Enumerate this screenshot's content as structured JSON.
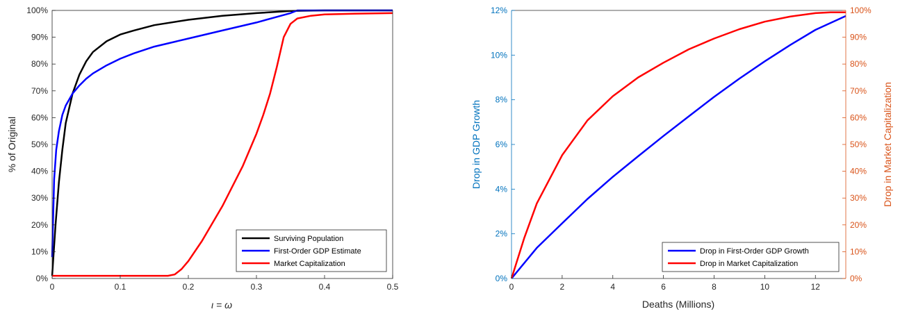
{
  "chart_data": [
    {
      "type": "line",
      "xlabel": "ι = ω",
      "ylabel": "% of Original",
      "xlim": [
        0,
        0.5
      ],
      "ylim": [
        0,
        1
      ],
      "x_ticks": [
        0,
        0.1,
        0.2,
        0.3,
        0.4,
        0.5
      ],
      "x_tick_labels": [
        "0",
        "0.1",
        "0.2",
        "0.3",
        "0.4",
        "0.5"
      ],
      "y_ticks": [
        0,
        0.1,
        0.2,
        0.3,
        0.4,
        0.5,
        0.6,
        0.7,
        0.8,
        0.9,
        1.0
      ],
      "y_tick_labels": [
        "0%",
        "10%",
        "20%",
        "30%",
        "40%",
        "50%",
        "60%",
        "70%",
        "80%",
        "90%",
        "100%"
      ],
      "legend_position": "bottom-right",
      "grid": false,
      "series": [
        {
          "name": "Surviving Population",
          "color": "#000000",
          "x": [
            0,
            0.005,
            0.01,
            0.015,
            0.02,
            0.03,
            0.04,
            0.05,
            0.06,
            0.08,
            0.1,
            0.12,
            0.15,
            0.2,
            0.25,
            0.3,
            0.35,
            0.4,
            0.45,
            0.5
          ],
          "y": [
            0.01,
            0.2,
            0.36,
            0.48,
            0.58,
            0.69,
            0.76,
            0.81,
            0.845,
            0.885,
            0.91,
            0.925,
            0.945,
            0.965,
            0.98,
            0.99,
            0.998,
            1.0,
            1.0,
            1.0
          ]
        },
        {
          "name": "First-Order GDP Estimate",
          "color": "#0000ff",
          "x": [
            0,
            0.003,
            0.006,
            0.01,
            0.015,
            0.02,
            0.03,
            0.04,
            0.05,
            0.06,
            0.08,
            0.1,
            0.12,
            0.15,
            0.2,
            0.25,
            0.3,
            0.35,
            0.36,
            0.4,
            0.45,
            0.5
          ],
          "y": [
            0.08,
            0.37,
            0.48,
            0.55,
            0.61,
            0.645,
            0.69,
            0.72,
            0.745,
            0.765,
            0.795,
            0.82,
            0.84,
            0.865,
            0.895,
            0.925,
            0.955,
            0.99,
            1.0,
            1.0,
            1.0,
            1.0
          ]
        },
        {
          "name": "Market Capitalization",
          "color": "#ff0000",
          "x": [
            0,
            0.05,
            0.1,
            0.17,
            0.18,
            0.19,
            0.2,
            0.22,
            0.25,
            0.28,
            0.3,
            0.31,
            0.32,
            0.33,
            0.34,
            0.35,
            0.36,
            0.38,
            0.4,
            0.45,
            0.5
          ],
          "y": [
            0.01,
            0.01,
            0.01,
            0.01,
            0.015,
            0.035,
            0.065,
            0.14,
            0.27,
            0.42,
            0.54,
            0.61,
            0.69,
            0.79,
            0.9,
            0.95,
            0.97,
            0.98,
            0.985,
            0.988,
            0.99
          ]
        }
      ]
    },
    {
      "type": "line",
      "xlabel": "Deaths (Millions)",
      "ylabel": "Drop in GDP Growth",
      "ylabel_right": "Drop in Market Capitalization",
      "xlim": [
        0,
        13.2
      ],
      "ylim": [
        0,
        0.12
      ],
      "ylim_right": [
        0,
        1.0
      ],
      "x_ticks": [
        0,
        2,
        4,
        6,
        8,
        10,
        12
      ],
      "x_tick_labels": [
        "0",
        "2",
        "4",
        "6",
        "8",
        "10",
        "12"
      ],
      "y_ticks": [
        0,
        0.02,
        0.04,
        0.06,
        0.08,
        0.1,
        0.12
      ],
      "y_tick_labels": [
        "0%",
        "2%",
        "4%",
        "6%",
        "8%",
        "10%",
        "12%"
      ],
      "y_ticks_right": [
        0,
        0.1,
        0.2,
        0.3,
        0.4,
        0.5,
        0.6,
        0.7,
        0.8,
        0.9,
        1.0
      ],
      "y_tick_labels_right": [
        "0%",
        "10%",
        "20%",
        "30%",
        "40%",
        "50%",
        "60%",
        "70%",
        "80%",
        "90%",
        "100%"
      ],
      "left_axis_color": "#0072bd",
      "right_axis_color": "#d95319",
      "legend_position": "bottom-right",
      "grid": false,
      "series": [
        {
          "name": "Drop in First-Order GDP Growth",
          "color": "#0000ff",
          "axis": "left",
          "x": [
            0,
            1,
            2,
            3,
            4,
            5,
            6,
            7,
            8,
            9,
            10,
            11,
            12,
            13.2
          ],
          "y": [
            0,
            0.0137,
            0.0247,
            0.0356,
            0.0455,
            0.0547,
            0.0638,
            0.0726,
            0.0813,
            0.0895,
            0.0972,
            0.1045,
            0.1113,
            0.1175
          ]
        },
        {
          "name": "Drop in Market Capitalization",
          "color": "#ff0000",
          "axis": "right",
          "x": [
            0,
            0.5,
            1,
            2,
            3,
            4,
            5,
            6,
            7,
            8,
            9,
            10,
            11,
            12,
            12.6,
            13.2
          ],
          "y": [
            0,
            0.15,
            0.28,
            0.46,
            0.59,
            0.68,
            0.75,
            0.805,
            0.855,
            0.895,
            0.93,
            0.958,
            0.977,
            0.99,
            0.993,
            0.993
          ]
        }
      ]
    }
  ]
}
